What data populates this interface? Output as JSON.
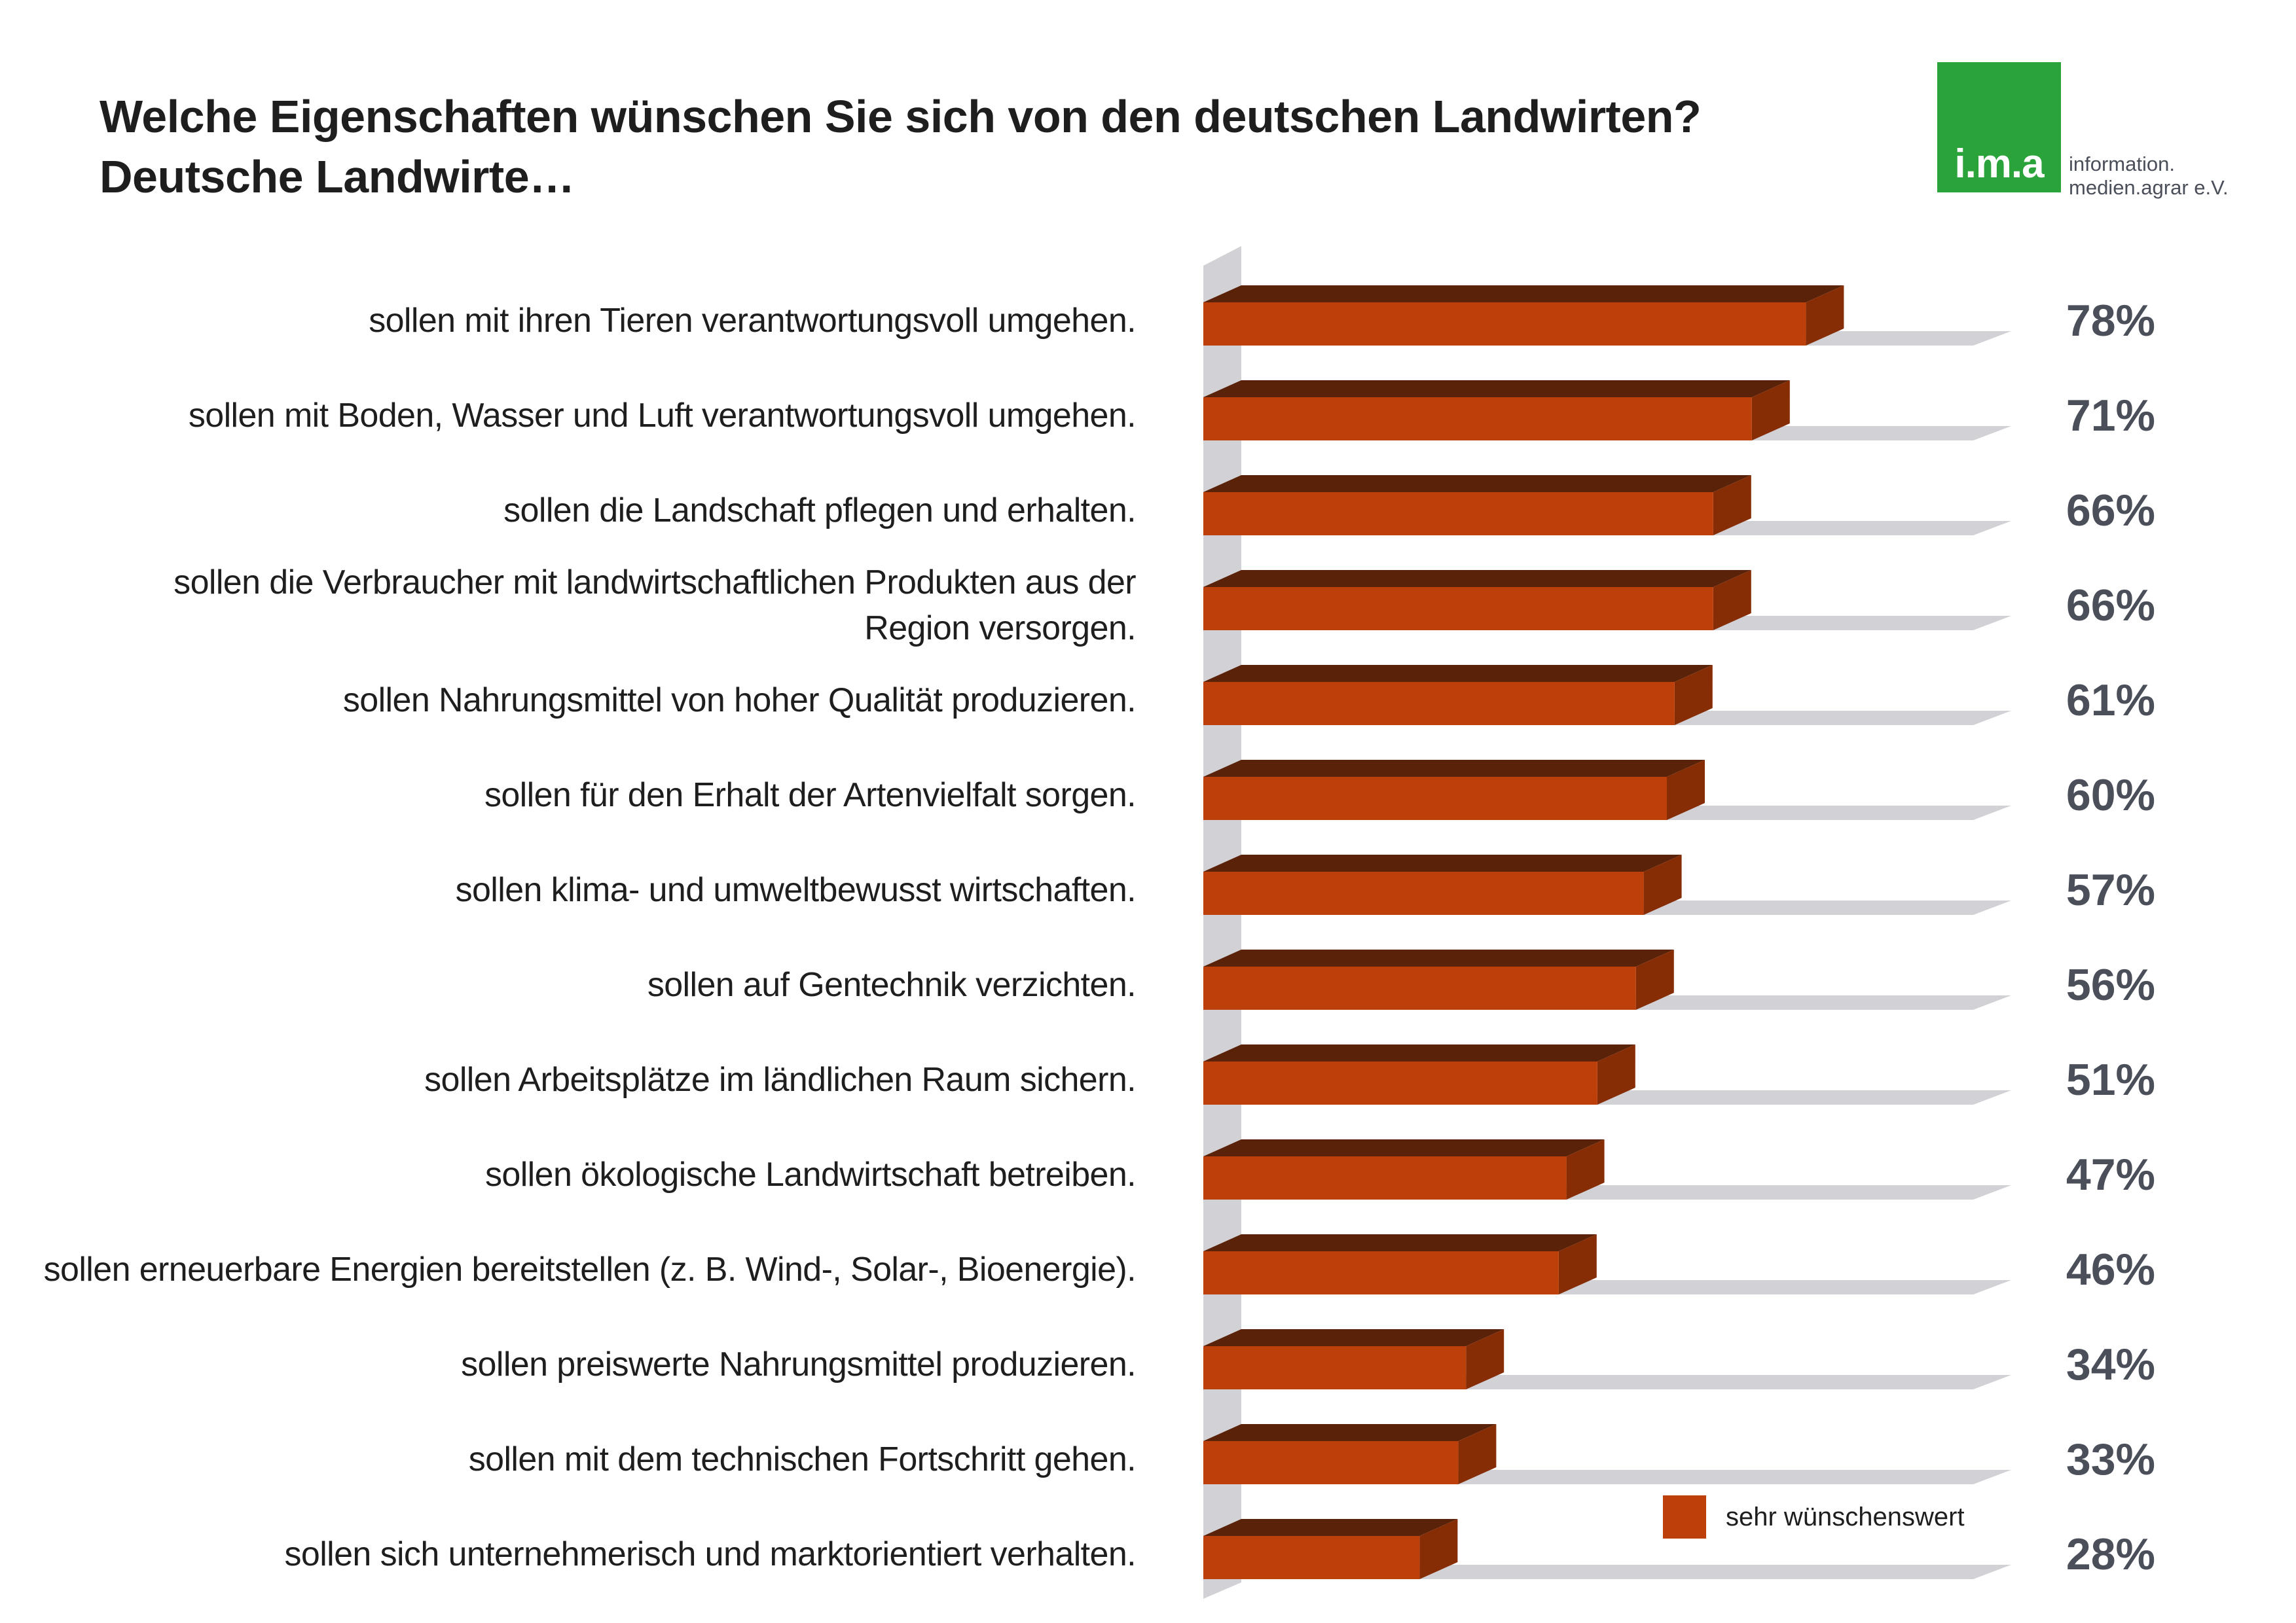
{
  "header": {
    "title_line1": "Welche Eigenschaften wünschen Sie sich von den deutschen Landwirten?",
    "title_line2": "Deutsche Landwirte…"
  },
  "logo": {
    "mark": "i.m.a",
    "org_line1": "information.",
    "org_line2": "medien.agrar e.V."
  },
  "colors": {
    "bar_front": "#bd3f0a",
    "bar_top": "#5a2208",
    "bar_side": "#872d06",
    "track": "#d2d1d6",
    "value_text": "#4a4f5a",
    "logo_green": "#2aa33a"
  },
  "chart_data": {
    "type": "bar",
    "orientation": "horizontal",
    "unit": "%",
    "xlim": [
      0,
      100
    ],
    "categories": [
      [
        "sollen mit ihren Tieren verantwortungsvoll umgehen."
      ],
      [
        "sollen mit Boden, Wasser und Luft verantwortungsvoll umgehen."
      ],
      [
        "sollen die Landschaft pflegen und erhalten."
      ],
      [
        "sollen die Verbraucher mit landwirtschaftlichen Produkten aus der",
        "Region versorgen."
      ],
      [
        "sollen Nahrungsmittel von hoher Qualität produzieren."
      ],
      [
        "sollen für den Erhalt der Artenvielfalt sorgen."
      ],
      [
        "sollen klima- und umweltbewusst wirtschaften."
      ],
      [
        "sollen auf Gentechnik verzichten."
      ],
      [
        "sollen Arbeitsplätze im ländlichen Raum sichern."
      ],
      [
        "sollen ökologische Landwirtschaft betreiben."
      ],
      [
        "sollen erneuerbare Energien bereitstellen (z. B. Wind-, Solar-, Bioenergie)."
      ],
      [
        "sollen preiswerte Nahrungsmittel produzieren."
      ],
      [
        "sollen mit dem technischen Fortschritt gehen."
      ],
      [
        "sollen sich unternehmerisch und marktorientiert verhalten."
      ]
    ],
    "series": [
      {
        "name": "sehr wünschenswert",
        "values": [
          78,
          71,
          66,
          66,
          61,
          60,
          57,
          56,
          51,
          47,
          46,
          34,
          33,
          28
        ]
      }
    ],
    "value_labels": [
      "78%",
      "71%",
      "66%",
      "66%",
      "61%",
      "60%",
      "57%",
      "56%",
      "51%",
      "47%",
      "46%",
      "34%",
      "33%",
      "28%"
    ],
    "legend": {
      "position": "bottom-right",
      "label": "sehr wünschenswert"
    },
    "grid": false
  }
}
